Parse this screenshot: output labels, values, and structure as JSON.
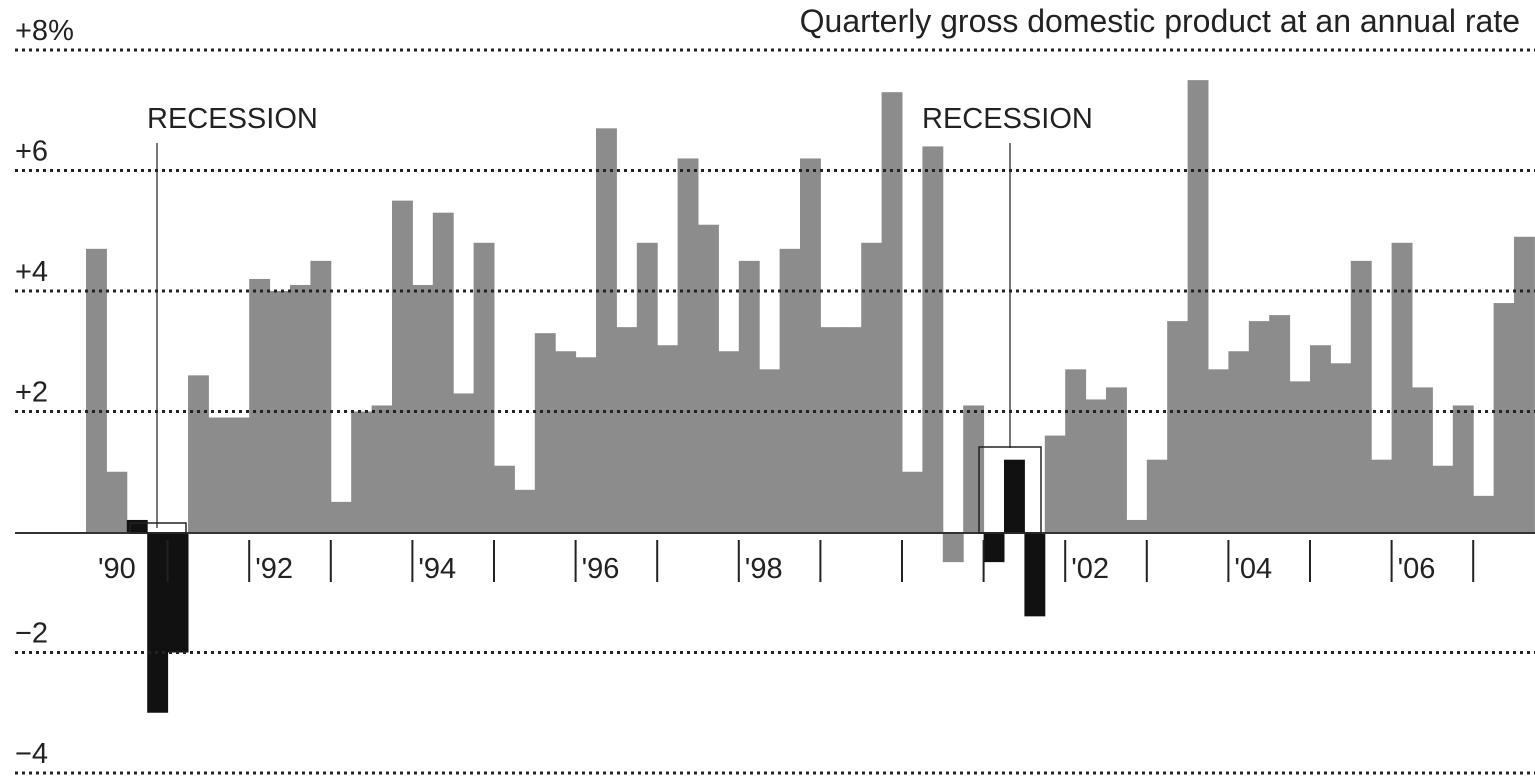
{
  "chart_data": {
    "type": "bar",
    "title": "Quarterly gross domestic product at an annual rate",
    "annotations": [
      "RECESSION",
      "RECESSION"
    ],
    "categories": [
      "'90",
      null,
      null,
      null,
      null,
      null,
      null,
      null,
      "'92",
      null,
      null,
      null,
      null,
      null,
      null,
      null,
      "'94",
      null,
      null,
      null,
      null,
      null,
      null,
      null,
      "'96",
      null,
      null,
      null,
      null,
      null,
      null,
      null,
      "'98",
      null,
      null,
      null,
      null,
      null,
      null,
      null,
      null,
      null,
      null,
      null,
      null,
      null,
      null,
      null,
      "'02",
      null,
      null,
      null,
      null,
      null,
      null,
      null,
      "'04",
      null,
      null,
      null,
      null,
      null,
      null,
      null,
      "'06",
      null,
      null,
      null,
      null,
      null,
      null
    ],
    "values": [
      4.7,
      1.0,
      0.2,
      -3.0,
      -2.0,
      2.6,
      1.9,
      1.9,
      4.2,
      4.0,
      4.1,
      4.5,
      0.5,
      2.0,
      2.1,
      5.5,
      4.1,
      5.3,
      2.3,
      4.8,
      1.1,
      0.7,
      3.3,
      3.0,
      2.9,
      6.7,
      3.4,
      4.8,
      3.1,
      6.2,
      5.1,
      3.0,
      4.5,
      2.7,
      4.7,
      6.2,
      3.4,
      3.4,
      4.8,
      7.3,
      1.0,
      6.4,
      -0.5,
      2.1,
      -0.5,
      1.2,
      -1.4,
      1.6,
      2.7,
      2.2,
      2.4,
      0.2,
      1.2,
      3.5,
      7.5,
      2.7,
      3.0,
      3.5,
      3.6,
      2.5,
      3.1,
      2.8,
      4.5,
      1.2,
      4.8,
      2.4,
      1.1,
      2.1,
      0.6,
      3.8,
      4.9
    ],
    "colors": [
      "#8c8c8c",
      "#8c8c8c",
      "#111111",
      "#111111",
      "#111111",
      "#8c8c8c",
      "#8c8c8c",
      "#8c8c8c",
      "#8c8c8c",
      "#8c8c8c",
      "#8c8c8c",
      "#8c8c8c",
      "#8c8c8c",
      "#8c8c8c",
      "#8c8c8c",
      "#8c8c8c",
      "#8c8c8c",
      "#8c8c8c",
      "#8c8c8c",
      "#8c8c8c",
      "#8c8c8c",
      "#8c8c8c",
      "#8c8c8c",
      "#8c8c8c",
      "#8c8c8c",
      "#8c8c8c",
      "#8c8c8c",
      "#8c8c8c",
      "#8c8c8c",
      "#8c8c8c",
      "#8c8c8c",
      "#8c8c8c",
      "#8c8c8c",
      "#8c8c8c",
      "#8c8c8c",
      "#8c8c8c",
      "#8c8c8c",
      "#8c8c8c",
      "#8c8c8c",
      "#8c8c8c",
      "#8c8c8c",
      "#8c8c8c",
      "#8c8c8c",
      "#8c8c8c",
      "#111111",
      "#111111",
      "#111111",
      "#8c8c8c",
      "#8c8c8c",
      "#8c8c8c",
      "#8c8c8c",
      "#8c8c8c",
      "#8c8c8c",
      "#8c8c8c",
      "#8c8c8c",
      "#8c8c8c",
      "#8c8c8c",
      "#8c8c8c",
      "#8c8c8c",
      "#8c8c8c",
      "#8c8c8c",
      "#8c8c8c",
      "#8c8c8c",
      "#8c8c8c",
      "#8c8c8c",
      "#8c8c8c",
      "#8c8c8c",
      "#8c8c8c",
      "#8c8c8c",
      "#8c8c8c",
      "#8c8c8c"
    ],
    "ylim": [
      -4,
      8
    ],
    "yticks": [
      {
        "value": 8,
        "label": "+8%"
      },
      {
        "value": 6,
        "label": "+6"
      },
      {
        "value": 4,
        "label": "+4"
      },
      {
        "value": 2,
        "label": "+2"
      },
      {
        "value": -2,
        "label": "−2"
      },
      {
        "value": -4,
        "label": "−4"
      }
    ],
    "grid": true
  }
}
